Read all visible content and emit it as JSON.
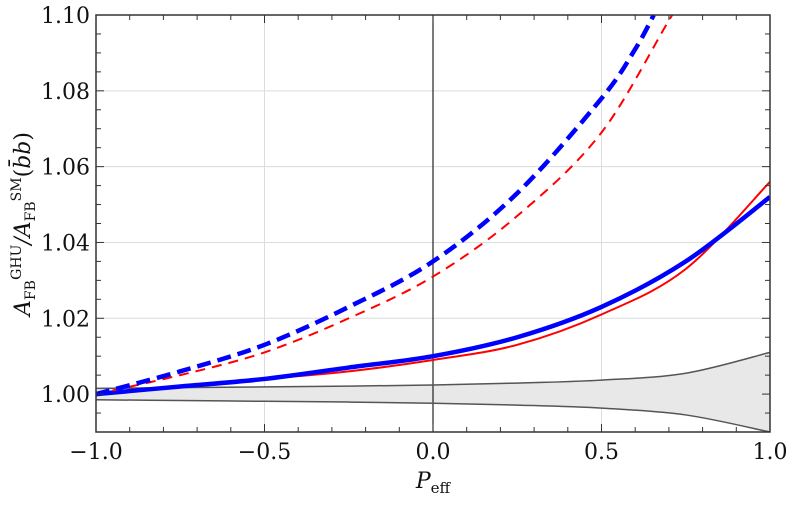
{
  "chart_data": {
    "type": "line",
    "title": "",
    "xlabel": "P_eff",
    "ylabel": "A_FB^GHU / A_FB^SM (b̄b)",
    "xlim": [
      -1.0,
      1.0
    ],
    "ylim": [
      0.99,
      1.1
    ],
    "x_ticks": [
      "−1.0",
      "−0.5",
      "0.0",
      "0.5",
      "1.0"
    ],
    "y_ticks": [
      "1.00",
      "1.02",
      "1.04",
      "1.06",
      "1.08",
      "1.10"
    ],
    "grid": true,
    "x": [
      -1.0,
      -0.75,
      -0.5,
      -0.25,
      0.0,
      0.25,
      0.5,
      0.75,
      1.0
    ],
    "series": [
      {
        "name": "blue-dashed-thick",
        "color": "#0000ff",
        "style": "dashed",
        "width": 4.5,
        "values": [
          1.0,
          1.006,
          1.013,
          1.023,
          1.035,
          1.053,
          1.078,
          null,
          null
        ],
        "extra_points": [
          [
            0.6,
            1.091
          ],
          [
            0.655,
            1.1
          ]
        ]
      },
      {
        "name": "red-dashed-thin",
        "color": "#ff0000",
        "style": "dashed",
        "width": 2,
        "values": [
          1.0,
          1.005,
          1.011,
          1.02,
          1.031,
          1.047,
          1.069,
          1.103,
          null
        ],
        "extra_points": [
          [
            0.71,
            1.1
          ]
        ]
      },
      {
        "name": "blue-solid-thick",
        "color": "#0000ff",
        "style": "solid",
        "width": 4.5,
        "values": [
          1.0,
          1.002,
          1.004,
          1.007,
          1.01,
          1.015,
          1.023,
          1.035,
          1.052
        ]
      },
      {
        "name": "red-solid-thin",
        "color": "#ff0000",
        "style": "solid",
        "width": 2,
        "values": [
          1.0,
          1.002,
          1.004,
          1.006,
          1.009,
          1.013,
          1.021,
          1.033,
          1.056
        ]
      },
      {
        "name": "sm-band-upper",
        "color": "#555555",
        "style": "solid",
        "width": 1.5,
        "values": [
          1.0015,
          1.0017,
          1.0019,
          1.0021,
          1.0024,
          1.0029,
          1.0037,
          1.0055,
          1.011
        ]
      },
      {
        "name": "sm-band-lower",
        "color": "#555555",
        "style": "solid",
        "width": 1.5,
        "values": [
          0.9985,
          0.9983,
          0.9981,
          0.9979,
          0.9976,
          0.9971,
          0.9963,
          0.9945,
          0.99
        ]
      }
    ],
    "band_fill": "#e8e8e8"
  }
}
